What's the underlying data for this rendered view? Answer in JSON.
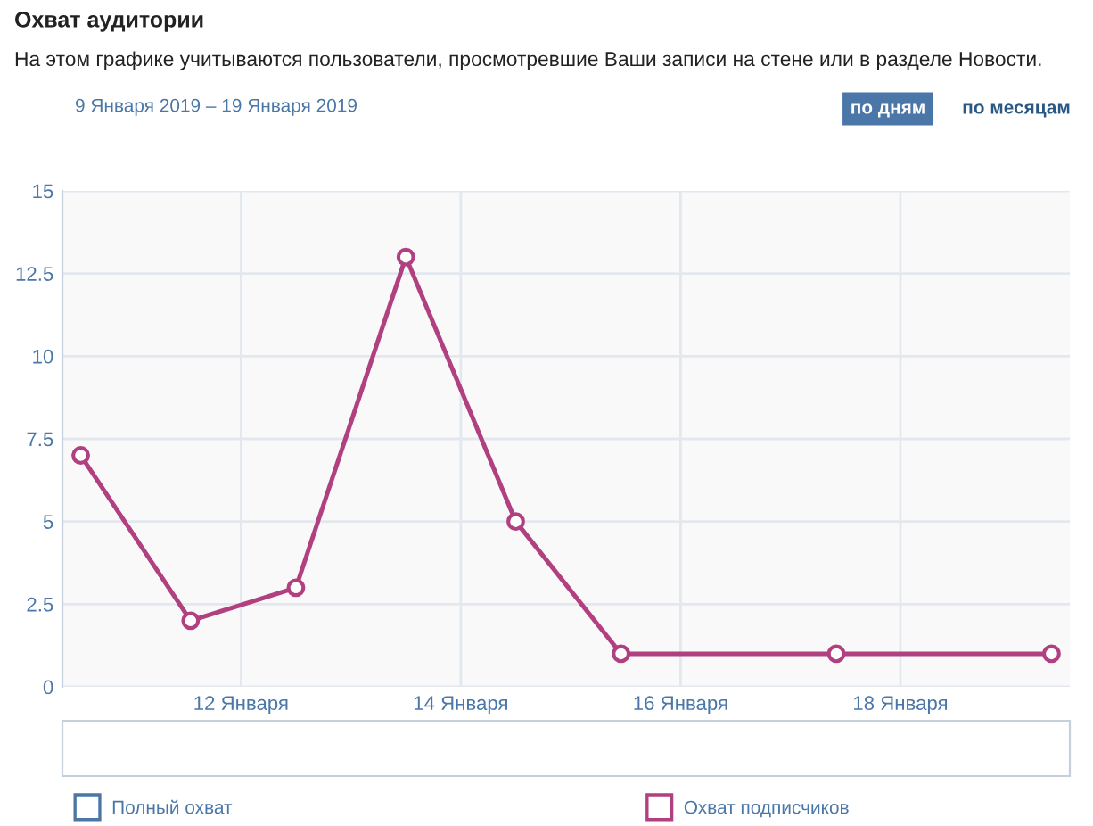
{
  "chart_data": {
    "type": "line",
    "title": "Охват аудитории",
    "subtitle": "На этом графике учитываются пользователи, просмотревшие Ваши записи на стене или в разделе Новости.",
    "annotations": [
      "9 Января 2019 – 19 Января 2019",
      "по дням",
      "по месяцам"
    ],
    "x": [
      "2019-01-10T13:00",
      "2019-01-11T13:00",
      "2019-01-12T12:00",
      "2019-01-13T12:00",
      "2019-01-14T12:00",
      "2019-01-15T11:00",
      "2019-01-17T10:00",
      "2019-01-19T09:00"
    ],
    "series": [
      {
        "name": "Полный охват",
        "color": "#4a76a8",
        "values": [
          null,
          null,
          null,
          null,
          null,
          null,
          null,
          null
        ]
      },
      {
        "name": "Охват подписчиков",
        "color": "#b0407f",
        "values": [
          7,
          2,
          3,
          13,
          5,
          1,
          1,
          1
        ]
      }
    ],
    "xlim": [
      "2019-01-10T09:00",
      "2019-01-19T13:00"
    ],
    "xticks": [
      {
        "value": "2019-01-12",
        "label": "12 Января"
      },
      {
        "value": "2019-01-14",
        "label": "14 Января"
      },
      {
        "value": "2019-01-16",
        "label": "16 Января"
      },
      {
        "value": "2019-01-18",
        "label": "18 Января"
      }
    ],
    "ylim": [
      0,
      15
    ],
    "yticks": [
      0,
      2.5,
      5,
      7.5,
      10,
      12.5,
      15
    ],
    "grid": true,
    "legend": "bottom",
    "marker": "circle",
    "line_style": "solid"
  }
}
